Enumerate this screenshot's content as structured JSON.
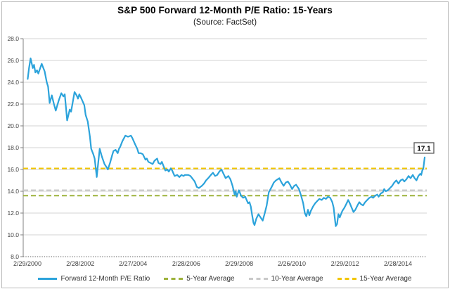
{
  "title": "S&P 500 Forward 12-Month P/E Ratio: 15-Years",
  "subtitle": "(Source: FactSet)",
  "chart_data": {
    "type": "line",
    "title": "S&P 500 Forward 12-Month P/E Ratio: 15-Years",
    "subtitle": "(Source: FactSet)",
    "grid": true,
    "legend_position": "bottom",
    "ylim": [
      8.0,
      28.0
    ],
    "ytick_step": 2.0,
    "xlim": [
      2000.0,
      2015.25
    ],
    "x_tick_positions": [
      2000.16,
      2002.16,
      2004.15,
      2006.16,
      2008.16,
      2010.15,
      2012.16,
      2014.16
    ],
    "x_tick_labels": [
      "2/29/2000",
      "2/28/2002",
      "2/27/2004",
      "2/28/2006",
      "2/29/2008",
      "2/26/2010",
      "2/29/2012",
      "2/28/2014"
    ],
    "end_label": "17.1",
    "colors": {
      "line": "#2CA3DB",
      "avg5": "#9DB23B",
      "avg10": "#C9C9C9",
      "avg15": "#F2C500",
      "gridline": "#D3D3D3",
      "axis": "#808080",
      "text": "#3F3F3F"
    },
    "average_lines": [
      {
        "name": "5-Year Average",
        "value": 13.6,
        "color_key": "avg5"
      },
      {
        "name": "10-Year Average",
        "value": 14.1,
        "color_key": "avg10"
      },
      {
        "name": "15-Year Average",
        "value": 16.1,
        "color_key": "avg15"
      }
    ],
    "series": [
      {
        "name": "Forward 12-Month P/E Ratio",
        "color_key": "line",
        "style": "solid",
        "points": [
          [
            2000.17,
            24.3
          ],
          [
            2000.22,
            25.3
          ],
          [
            2000.28,
            26.2
          ],
          [
            2000.36,
            25.3
          ],
          [
            2000.41,
            25.6
          ],
          [
            2000.46,
            24.9
          ],
          [
            2000.52,
            25.1
          ],
          [
            2000.57,
            24.8
          ],
          [
            2000.7,
            25.7
          ],
          [
            2000.81,
            25.0
          ],
          [
            2000.89,
            24.0
          ],
          [
            2000.94,
            23.6
          ],
          [
            2001.0,
            22.1
          ],
          [
            2001.08,
            22.8
          ],
          [
            2001.16,
            22.0
          ],
          [
            2001.23,
            21.4
          ],
          [
            2001.34,
            22.3
          ],
          [
            2001.44,
            23.0
          ],
          [
            2001.52,
            22.7
          ],
          [
            2001.57,
            22.9
          ],
          [
            2001.66,
            20.5
          ],
          [
            2001.76,
            21.5
          ],
          [
            2001.81,
            21.3
          ],
          [
            2001.94,
            23.1
          ],
          [
            2002.02,
            22.8
          ],
          [
            2002.07,
            22.5
          ],
          [
            2002.12,
            22.9
          ],
          [
            2002.18,
            22.6
          ],
          [
            2002.31,
            21.9
          ],
          [
            2002.36,
            21.0
          ],
          [
            2002.44,
            20.4
          ],
          [
            2002.52,
            19.0
          ],
          [
            2002.57,
            17.9
          ],
          [
            2002.65,
            17.4
          ],
          [
            2002.7,
            17.0
          ],
          [
            2002.78,
            15.3
          ],
          [
            2002.83,
            16.5
          ],
          [
            2002.89,
            17.9
          ],
          [
            2002.97,
            17.2
          ],
          [
            2003.07,
            16.5
          ],
          [
            2003.15,
            16.2
          ],
          [
            2003.2,
            16.0
          ],
          [
            2003.28,
            16.6
          ],
          [
            2003.36,
            17.3
          ],
          [
            2003.41,
            17.7
          ],
          [
            2003.49,
            17.8
          ],
          [
            2003.57,
            17.5
          ],
          [
            2003.62,
            17.9
          ],
          [
            2003.67,
            18.1
          ],
          [
            2003.75,
            18.6
          ],
          [
            2003.86,
            19.1
          ],
          [
            2003.96,
            19.0
          ],
          [
            2004.07,
            19.1
          ],
          [
            2004.12,
            18.9
          ],
          [
            2004.23,
            18.3
          ],
          [
            2004.31,
            17.9
          ],
          [
            2004.36,
            17.5
          ],
          [
            2004.44,
            17.5
          ],
          [
            2004.52,
            17.4
          ],
          [
            2004.62,
            16.9
          ],
          [
            2004.67,
            17.0
          ],
          [
            2004.73,
            16.7
          ],
          [
            2004.81,
            16.6
          ],
          [
            2004.89,
            16.5
          ],
          [
            2004.96,
            16.8
          ],
          [
            2005.06,
            17.0
          ],
          [
            2005.11,
            16.6
          ],
          [
            2005.19,
            16.5
          ],
          [
            2005.24,
            16.7
          ],
          [
            2005.37,
            15.9
          ],
          [
            2005.45,
            16.0
          ],
          [
            2005.5,
            15.8
          ],
          [
            2005.58,
            16.1
          ],
          [
            2005.63,
            15.9
          ],
          [
            2005.72,
            15.4
          ],
          [
            2005.82,
            15.5
          ],
          [
            2005.9,
            15.3
          ],
          [
            2005.98,
            15.5
          ],
          [
            2006.06,
            15.4
          ],
          [
            2006.11,
            15.5
          ],
          [
            2006.24,
            15.5
          ],
          [
            2006.32,
            15.4
          ],
          [
            2006.48,
            14.9
          ],
          [
            2006.56,
            14.4
          ],
          [
            2006.64,
            14.3
          ],
          [
            2006.75,
            14.5
          ],
          [
            2006.83,
            14.7
          ],
          [
            2006.91,
            15.0
          ],
          [
            2006.99,
            15.2
          ],
          [
            2007.09,
            15.5
          ],
          [
            2007.17,
            15.7
          ],
          [
            2007.25,
            15.4
          ],
          [
            2007.33,
            15.5
          ],
          [
            2007.41,
            15.8
          ],
          [
            2007.49,
            16.0
          ],
          [
            2007.57,
            15.6
          ],
          [
            2007.65,
            15.2
          ],
          [
            2007.75,
            15.4
          ],
          [
            2007.83,
            15.1
          ],
          [
            2007.91,
            14.5
          ],
          [
            2007.99,
            13.7
          ],
          [
            2008.03,
            14.0
          ],
          [
            2008.07,
            13.5
          ],
          [
            2008.15,
            14.1
          ],
          [
            2008.23,
            13.6
          ],
          [
            2008.31,
            13.4
          ],
          [
            2008.39,
            13.5
          ],
          [
            2008.46,
            13.1
          ],
          [
            2008.5,
            12.9
          ],
          [
            2008.55,
            13.0
          ],
          [
            2008.6,
            12.6
          ],
          [
            2008.65,
            11.8
          ],
          [
            2008.7,
            11.1
          ],
          [
            2008.74,
            10.9
          ],
          [
            2008.81,
            11.5
          ],
          [
            2008.89,
            11.9
          ],
          [
            2008.97,
            11.6
          ],
          [
            2009.05,
            11.3
          ],
          [
            2009.13,
            12.0
          ],
          [
            2009.2,
            12.7
          ],
          [
            2009.28,
            13.9
          ],
          [
            2009.39,
            14.4
          ],
          [
            2009.47,
            14.8
          ],
          [
            2009.55,
            15.0
          ],
          [
            2009.68,
            15.2
          ],
          [
            2009.76,
            14.8
          ],
          [
            2009.84,
            14.5
          ],
          [
            2009.92,
            14.8
          ],
          [
            2010.0,
            14.9
          ],
          [
            2010.08,
            14.6
          ],
          [
            2010.16,
            14.2
          ],
          [
            2010.24,
            14.5
          ],
          [
            2010.31,
            14.6
          ],
          [
            2010.42,
            14.2
          ],
          [
            2010.5,
            13.6
          ],
          [
            2010.58,
            12.9
          ],
          [
            2010.64,
            12.0
          ],
          [
            2010.7,
            11.7
          ],
          [
            2010.76,
            12.3
          ],
          [
            2010.81,
            11.8
          ],
          [
            2010.87,
            12.2
          ],
          [
            2010.95,
            12.6
          ],
          [
            2011.03,
            12.9
          ],
          [
            2011.11,
            13.1
          ],
          [
            2011.19,
            13.3
          ],
          [
            2011.28,
            13.2
          ],
          [
            2011.36,
            13.4
          ],
          [
            2011.44,
            13.3
          ],
          [
            2011.52,
            13.5
          ],
          [
            2011.6,
            13.4
          ],
          [
            2011.68,
            13.0
          ],
          [
            2011.73,
            12.5
          ],
          [
            2011.78,
            11.4
          ],
          [
            2011.81,
            10.8
          ],
          [
            2011.86,
            11.0
          ],
          [
            2011.91,
            11.9
          ],
          [
            2011.96,
            11.6
          ],
          [
            2012.01,
            11.9
          ],
          [
            2012.06,
            12.2
          ],
          [
            2012.14,
            12.5
          ],
          [
            2012.22,
            12.9
          ],
          [
            2012.28,
            13.2
          ],
          [
            2012.34,
            12.9
          ],
          [
            2012.41,
            12.5
          ],
          [
            2012.48,
            12.1
          ],
          [
            2012.55,
            12.3
          ],
          [
            2012.63,
            12.7
          ],
          [
            2012.7,
            13.0
          ],
          [
            2012.77,
            12.8
          ],
          [
            2012.84,
            12.7
          ],
          [
            2012.92,
            13.0
          ],
          [
            2013.0,
            13.2
          ],
          [
            2013.08,
            13.4
          ],
          [
            2013.16,
            13.5
          ],
          [
            2013.22,
            13.4
          ],
          [
            2013.3,
            13.6
          ],
          [
            2013.38,
            13.7
          ],
          [
            2013.43,
            13.5
          ],
          [
            2013.51,
            13.8
          ],
          [
            2013.59,
            13.9
          ],
          [
            2013.64,
            14.2
          ],
          [
            2013.7,
            14.0
          ],
          [
            2013.78,
            14.1
          ],
          [
            2013.86,
            14.3
          ],
          [
            2013.94,
            14.5
          ],
          [
            2014.02,
            14.8
          ],
          [
            2014.1,
            15.0
          ],
          [
            2014.18,
            14.7
          ],
          [
            2014.26,
            15.0
          ],
          [
            2014.34,
            15.1
          ],
          [
            2014.4,
            14.9
          ],
          [
            2014.48,
            15.1
          ],
          [
            2014.56,
            15.4
          ],
          [
            2014.64,
            15.2
          ],
          [
            2014.72,
            15.5
          ],
          [
            2014.79,
            15.2
          ],
          [
            2014.86,
            15.0
          ],
          [
            2014.93,
            15.4
          ],
          [
            2015.0,
            15.6
          ],
          [
            2015.04,
            15.5
          ],
          [
            2015.08,
            15.9
          ],
          [
            2015.12,
            16.1
          ],
          [
            2015.17,
            17.1
          ]
        ]
      }
    ],
    "legend": [
      {
        "label": "Forward 12-Month P/E Ratio",
        "style": "solid",
        "color_key": "line"
      },
      {
        "label": "5-Year Average",
        "style": "dashed",
        "color_key": "avg5"
      },
      {
        "label": "10-Year Average",
        "style": "dashed",
        "color_key": "avg10"
      },
      {
        "label": "15-Year Average",
        "style": "dashed",
        "color_key": "avg15"
      }
    ]
  }
}
